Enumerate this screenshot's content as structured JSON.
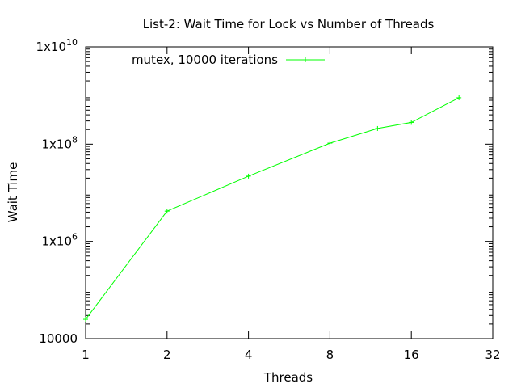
{
  "chart_data": {
    "type": "line",
    "title": "List-2: Wait Time for Lock vs Number of Threads",
    "xlabel": "Threads",
    "ylabel": "Wait Time",
    "x_scale": "log2",
    "y_scale": "log10",
    "xlim": [
      1,
      32
    ],
    "ylim": [
      10000,
      10000000000
    ],
    "x_ticks": [
      {
        "value": 1,
        "label": "1"
      },
      {
        "value": 2,
        "label": "2"
      },
      {
        "value": 4,
        "label": "4"
      },
      {
        "value": 8,
        "label": "8"
      },
      {
        "value": 16,
        "label": "16"
      },
      {
        "value": 32,
        "label": "32"
      }
    ],
    "y_ticks": [
      {
        "value": 10000,
        "label": "10000"
      },
      {
        "value": 1000000,
        "label": "1x10",
        "sup": "6"
      },
      {
        "value": 100000000,
        "label": "1x10",
        "sup": "8"
      },
      {
        "value": 10000000000,
        "label": "1x10",
        "sup": "10"
      }
    ],
    "legend": "top-left",
    "grid": false,
    "series": [
      {
        "name": "mutex, 10000 iterations",
        "color": "#00ff00",
        "marker": "plus",
        "x": [
          1,
          2,
          4,
          8,
          12,
          16,
          24
        ],
        "y": [
          25000,
          4200000,
          22000000,
          105000000,
          210000000,
          280000000,
          900000000
        ]
      }
    ]
  }
}
